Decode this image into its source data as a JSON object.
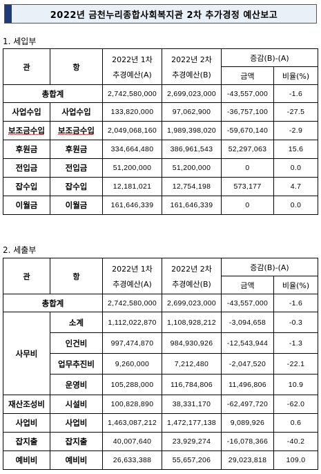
{
  "title": "2022년 금천누리종합사회복지관 2차 추가경정 예산보고",
  "income": {
    "section_title": "1. 세입부",
    "headers": {
      "kwan": "관",
      "hang": "항",
      "col1_line1": "2022년 1차",
      "col1_line2": "추경예산(A)",
      "col2_line1": "2022년 2차",
      "col2_line2": "추경예산(B)",
      "change": "증감(B)-(A)",
      "amount": "금액",
      "ratio": "비율(%)"
    },
    "total": {
      "label": "총합계",
      "a": "2,742,580,000",
      "b": "2,699,023,000",
      "diff": "-43,557,000",
      "ratio": "-1.6"
    },
    "rows": [
      {
        "kwan": "사업수입",
        "hang": "사업수입",
        "a": "133,820,000",
        "b": "97,062,900",
        "diff": "-36,757,100",
        "ratio": "-27.5"
      },
      {
        "kwan": "보조금수입",
        "hang": "보조금수입",
        "a": "2,049,068,160",
        "b": "1,989,398,020",
        "diff": "-59,670,140",
        "ratio": "-2.9"
      },
      {
        "kwan": "후원금",
        "hang": "후원금",
        "a": "334,664,480",
        "b": "386,961,543",
        "diff": "52,297,063",
        "ratio": "15.6"
      },
      {
        "kwan": "전입금",
        "hang": "전입금",
        "a": "51,200,000",
        "b": "51,200,000",
        "diff": "0",
        "ratio": "0.0"
      },
      {
        "kwan": "잡수입",
        "hang": "잡수입",
        "a": "12,181,021",
        "b": "12,754,198",
        "diff": "573,177",
        "ratio": "4.7"
      },
      {
        "kwan": "이월금",
        "hang": "이월금",
        "a": "161,646,339",
        "b": "161,646,339",
        "diff": "0",
        "ratio": "0.0"
      }
    ]
  },
  "expense": {
    "section_title": "2. 세출부",
    "headers": {
      "kwan": "관",
      "hang": "항",
      "col1_line1": "2022년 1차",
      "col1_line2": "추경예산(A)",
      "col2_line1": "2022년 2차",
      "col2_line2": "추경예산(B)",
      "change": "증감(B)-(A)",
      "amount": "금액",
      "ratio": "비율(%)"
    },
    "total": {
      "label": "총합계",
      "a": "2,742,580,000",
      "b": "2,699,023,000",
      "diff": "-43,557,000",
      "ratio": "-1.6"
    },
    "office": {
      "kwan": "사무비",
      "rows": [
        {
          "hang": "소계",
          "a": "1,112,022,870",
          "b": "1,108,928,212",
          "diff": "-3,094,658",
          "ratio": "-0.3"
        },
        {
          "hang": "인건비",
          "a": "997,474,870",
          "b": "984,930,926",
          "diff": "-12,543,944",
          "ratio": "-1.3"
        },
        {
          "hang": "업무추진비",
          "a": "9,260,000",
          "b": "7,212,480",
          "diff": "-2,047,520",
          "ratio": "-22.1"
        },
        {
          "hang": "운영비",
          "a": "105,288,000",
          "b": "116,784,806",
          "diff": "11,496,806",
          "ratio": "10.9"
        }
      ]
    },
    "rows": [
      {
        "kwan": "재산조성비",
        "hang": "시설비",
        "a": "100,828,890",
        "b": "38,331,170",
        "diff": "-62,497,720",
        "ratio": "-62.0"
      },
      {
        "kwan": "사업비",
        "hang": "사업비",
        "a": "1,463,087,212",
        "b": "1,472,177,138",
        "diff": "9,089,926",
        "ratio": "0.6"
      },
      {
        "kwan": "잡지출",
        "hang": "잡지출",
        "a": "40,007,640",
        "b": "23,929,274",
        "diff": "-16,078,366",
        "ratio": "-40.2"
      },
      {
        "kwan": "예비비",
        "hang": "예비비",
        "a": "26,633,388",
        "b": "55,657,206",
        "diff": "29,023,818",
        "ratio": "109.0"
      }
    ]
  }
}
